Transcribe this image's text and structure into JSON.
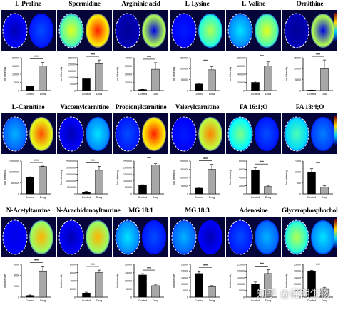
{
  "chart_data": [
    {
      "type": "bar",
      "title": "L-Proline",
      "categories": [
        "Control",
        "Drug"
      ],
      "values": [
        2600,
        15000
      ],
      "errors": [
        200,
        2200
      ],
      "yticks": [
        0,
        5000,
        10000,
        15000,
        20000
      ],
      "ylim": [
        0,
        20000
      ],
      "ylabel": "Ion Intensity",
      "significance": "***",
      "image": {
        "left": 0.05,
        "right": 0.2,
        "hi": "left"
      }
    },
    {
      "type": "bar",
      "title": "Spermidine",
      "categories": [
        "Control",
        "Drug"
      ],
      "values": [
        9000,
        20500
      ],
      "errors": [
        500,
        2800
      ],
      "yticks": [
        0,
        5000,
        10000,
        15000,
        20000,
        25000
      ],
      "ylim": [
        0,
        25000
      ],
      "ylabel": "Ion Intensity",
      "significance": "***",
      "image": {
        "left": 0.6,
        "right": 0.85,
        "hi": "both"
      }
    },
    {
      "type": "bar",
      "title": "Argininic acid",
      "categories": [
        "Control",
        "Drug"
      ],
      "values": [
        1200,
        26000
      ],
      "errors": [
        300,
        8000
      ],
      "yticks": [
        0,
        10000,
        20000,
        30000,
        40000
      ],
      "ylim": [
        0,
        40000
      ],
      "ylabel": "Ion Intensity",
      "significance": "***",
      "image": {
        "left": 0.05,
        "right": 0.3,
        "hi": "rim"
      }
    },
    {
      "type": "bar",
      "title": "L-Lysine",
      "categories": [
        "Control",
        "Drug"
      ],
      "values": [
        30000,
        95000
      ],
      "errors": [
        3000,
        15000
      ],
      "yticks": [
        0,
        50000,
        100000,
        150000
      ],
      "ylim": [
        0,
        150000
      ],
      "ylabel": "Ion Intensity",
      "significance": "***",
      "image": {
        "left": 0.15,
        "right": 0.55,
        "hi": "right"
      }
    },
    {
      "type": "bar",
      "title": "L-Valine",
      "categories": [
        "Control",
        "Drug"
      ],
      "values": [
        20000,
        60000
      ],
      "errors": [
        3000,
        10000
      ],
      "yticks": [
        0,
        20000,
        40000,
        60000,
        80000
      ],
      "ylim": [
        0,
        80000
      ],
      "ylabel": "Ion Intensity",
      "significance": "***",
      "image": {
        "left": 0.35,
        "right": 0.6,
        "hi": "both"
      }
    },
    {
      "type": "bar",
      "title": "Ornithine",
      "categories": [
        "Control",
        "Drug"
      ],
      "values": [
        200,
        10000
      ],
      "errors": [
        50,
        4000
      ],
      "yticks": [
        0,
        5000,
        10000,
        15000
      ],
      "ylim": [
        0,
        15000
      ],
      "ylabel": "Ion Intensity",
      "significance": "***",
      "image": {
        "left": 0.05,
        "right": 0.6,
        "hi": "rim"
      }
    },
    {
      "type": "bar",
      "title": "L-Carnitine",
      "categories": [
        "Control",
        "Drug"
      ],
      "values": [
        750000,
        1250000
      ],
      "errors": [
        30000,
        20000
      ],
      "yticks": [
        0,
        500000,
        1000000,
        1500000
      ],
      "ylim": [
        0,
        1500000
      ],
      "ylabel": "Ion Intensity",
      "significance": "***",
      "image": {
        "left": 0.3,
        "right": 0.8,
        "hi": "right"
      }
    },
    {
      "type": "bar",
      "title": "Vaccenylcarnitine",
      "categories": [
        "Control",
        "Drug"
      ],
      "values": [
        150000,
        1800000
      ],
      "errors": [
        40000,
        300000
      ],
      "yticks": [
        0,
        500000,
        1000000,
        1500000,
        2000000,
        2500000
      ],
      "ylim": [
        0,
        2500000
      ],
      "ylabel": "Ion Intensity",
      "significance": "***",
      "image": {
        "left": 0.05,
        "right": 0.35,
        "hi": "right"
      }
    },
    {
      "type": "bar",
      "title": "Propionylcarnitine",
      "categories": [
        "Control",
        "Drug"
      ],
      "values": [
        65000,
        220000
      ],
      "errors": [
        5000,
        10000
      ],
      "yticks": [
        0,
        50000,
        100000,
        150000,
        200000,
        250000
      ],
      "ylim": [
        0,
        250000
      ],
      "ylabel": "Ion Intensity",
      "significance": "***",
      "image": {
        "left": 0.2,
        "right": 0.85,
        "hi": "right"
      }
    },
    {
      "type": "bar",
      "title": "Valerylcarnitine",
      "categories": [
        "Control",
        "Drug"
      ],
      "values": [
        35000,
        150000
      ],
      "errors": [
        5000,
        30000
      ],
      "yticks": [
        0,
        50000,
        100000,
        150000,
        200000
      ],
      "ylim": [
        0,
        200000
      ],
      "ylabel": "Ion Intensity",
      "significance": "***",
      "image": {
        "left": 0.15,
        "right": 0.75,
        "hi": "right"
      }
    },
    {
      "type": "bar",
      "title": "FA 16:1;O",
      "categories": [
        "Control",
        "Drug"
      ],
      "values": [
        5800,
        1800
      ],
      "errors": [
        600,
        300
      ],
      "yticks": [
        0,
        2000,
        4000,
        6000,
        8000
      ],
      "ylim": [
        0,
        8000
      ],
      "ylabel": "Ion Intensity",
      "significance": "***",
      "image": {
        "left": 0.5,
        "right": 0.2,
        "hi": "left"
      }
    },
    {
      "type": "bar",
      "title": "FA 18:4;O",
      "categories": [
        "Control",
        "Drug"
      ],
      "values": [
        1000,
        300
      ],
      "errors": [
        150,
        80
      ],
      "yticks": [
        0,
        500,
        1000,
        1500
      ],
      "ylim": [
        0,
        1500
      ],
      "ylabel": "Ion Intensity",
      "significance": "***",
      "image": {
        "left": 0.45,
        "right": 0.25,
        "hi": "left"
      }
    },
    {
      "type": "bar",
      "title": "N-Acetyltaurine",
      "categories": [
        "Control",
        "Drug"
      ],
      "values": [
        300,
        4800
      ],
      "errors": [
        100,
        900
      ],
      "yticks": [
        0,
        2000,
        4000,
        6000
      ],
      "ylim": [
        0,
        6000
      ],
      "ylabel": "Ion Intensity",
      "significance": "***",
      "image": {
        "left": 0.1,
        "right": 0.7,
        "hi": "right"
      }
    },
    {
      "type": "bar",
      "title": "N-Arachidonoyltaurine",
      "categories": [
        "Control",
        "Drug"
      ],
      "values": [
        1000,
        6000
      ],
      "errors": [
        200,
        600
      ],
      "yticks": [
        0,
        2000,
        4000,
        6000,
        8000
      ],
      "ylim": [
        0,
        8000
      ],
      "ylabel": "Ion Intensity",
      "significance": "***",
      "image": {
        "left": 0.05,
        "right": 0.7,
        "hi": "right"
      }
    },
    {
      "type": "bar",
      "title": "MG 18:1",
      "categories": [
        "Control",
        "Drug"
      ],
      "values": [
        13500,
        7000
      ],
      "errors": [
        800,
        800
      ],
      "yticks": [
        0,
        5000,
        10000,
        15000,
        20000
      ],
      "ylim": [
        0,
        20000
      ],
      "ylabel": "Ion Intensity",
      "significance": "***",
      "image": {
        "left": 0.35,
        "right": 0.2,
        "hi": "left"
      }
    },
    {
      "type": "bar",
      "title": "MG 18:3",
      "categories": [
        "Control",
        "Drug"
      ],
      "values": [
        18000,
        8000
      ],
      "errors": [
        2000,
        800
      ],
      "yticks": [
        0,
        5000,
        10000,
        15000,
        20000,
        25000
      ],
      "ylim": [
        0,
        25000
      ],
      "ylabel": "Ion Intensity",
      "significance": "***",
      "image": {
        "left": 0.3,
        "right": 0.05,
        "hi": "left"
      }
    },
    {
      "type": "bar",
      "title": "Adenosine",
      "categories": [
        "Control",
        "Drug"
      ],
      "values": [
        10000,
        18000
      ],
      "errors": [
        1500,
        3000
      ],
      "yticks": [
        0,
        5000,
        10000,
        15000,
        20000,
        25000
      ],
      "ylim": [
        0,
        25000
      ],
      "ylabel": "Ion Intensity",
      "significance": "***",
      "image": {
        "left": 0.2,
        "right": 0.3,
        "hi": "both"
      }
    },
    {
      "type": "bar",
      "title": "Glycerophosphocholine",
      "categories": [
        "Control",
        "Drug"
      ],
      "values": [
        20000,
        6500
      ],
      "errors": [
        500,
        1000
      ],
      "yticks": [
        0,
        5000,
        10000,
        15000,
        20000,
        25000
      ],
      "ylim": [
        0,
        25000
      ],
      "ylabel": "Ion Intensity",
      "significance": "***",
      "image": {
        "left": 0.55,
        "right": 0.35,
        "hi": "left"
      }
    }
  ],
  "watermark": "知乎 @谨明生物"
}
